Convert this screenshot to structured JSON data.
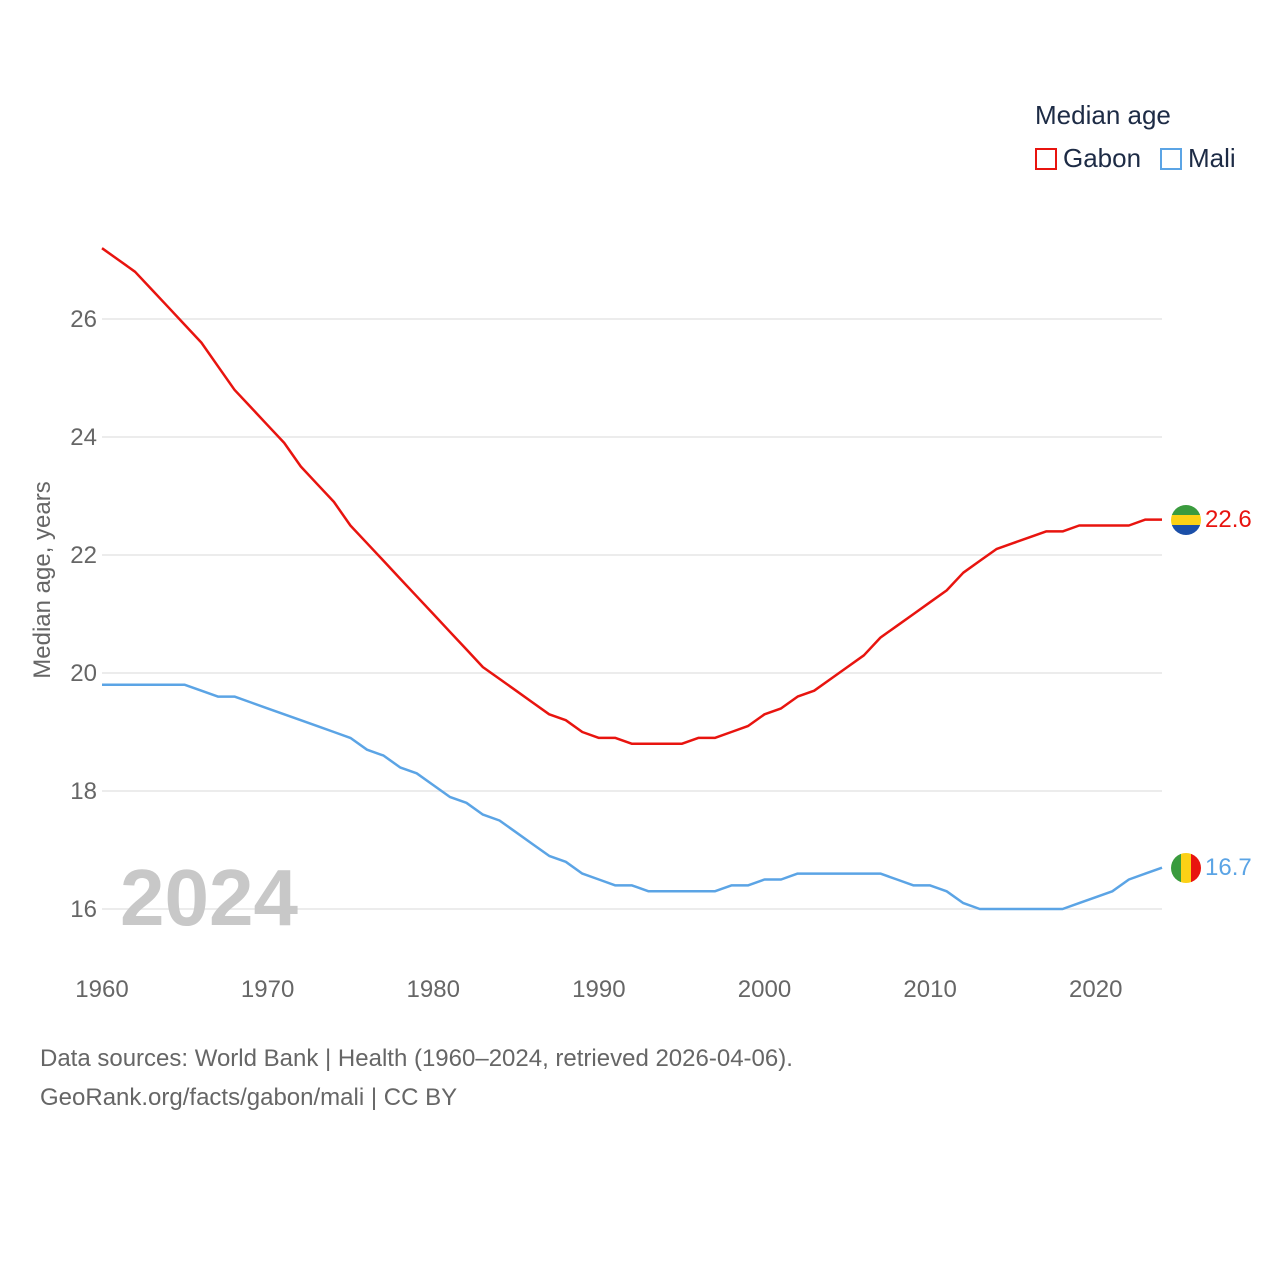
{
  "chart_data": {
    "type": "line",
    "legend_title": "Median age",
    "ylabel": "Median age, years",
    "xlabel": "",
    "xlim": [
      1960,
      2024
    ],
    "ylim": [
      15,
      27.5
    ],
    "x_ticks": [
      1960,
      1970,
      1980,
      1990,
      2000,
      2010,
      2020
    ],
    "y_ticks": [
      16,
      18,
      20,
      22,
      24,
      26
    ],
    "year_display": "2024",
    "x": [
      1960,
      1961,
      1962,
      1963,
      1964,
      1965,
      1966,
      1967,
      1968,
      1969,
      1970,
      1971,
      1972,
      1973,
      1974,
      1975,
      1976,
      1977,
      1978,
      1979,
      1980,
      1981,
      1982,
      1983,
      1984,
      1985,
      1986,
      1987,
      1988,
      1989,
      1990,
      1991,
      1992,
      1993,
      1994,
      1995,
      1996,
      1997,
      1998,
      1999,
      2000,
      2001,
      2002,
      2003,
      2004,
      2005,
      2006,
      2007,
      2008,
      2009,
      2010,
      2011,
      2012,
      2013,
      2014,
      2015,
      2016,
      2017,
      2018,
      2019,
      2020,
      2021,
      2022,
      2023,
      2024
    ],
    "series": [
      {
        "name": "Gabon",
        "color": "#e8140f",
        "end_label": "22.6",
        "flag": "gabon-flag",
        "values": [
          27.2,
          27.0,
          26.8,
          26.5,
          26.2,
          25.9,
          25.6,
          25.2,
          24.8,
          24.5,
          24.2,
          23.9,
          23.5,
          23.2,
          22.9,
          22.5,
          22.2,
          21.9,
          21.6,
          21.3,
          21.0,
          20.7,
          20.4,
          20.1,
          19.9,
          19.7,
          19.5,
          19.3,
          19.2,
          19.0,
          18.9,
          18.9,
          18.8,
          18.8,
          18.8,
          18.8,
          18.9,
          18.9,
          19.0,
          19.1,
          19.3,
          19.4,
          19.6,
          19.7,
          19.9,
          20.1,
          20.3,
          20.6,
          20.8,
          21.0,
          21.2,
          21.4,
          21.7,
          21.9,
          22.1,
          22.2,
          22.3,
          22.4,
          22.4,
          22.5,
          22.5,
          22.5,
          22.5,
          22.6,
          22.6
        ]
      },
      {
        "name": "Mali",
        "color": "#5ba4e5",
        "end_label": "16.7",
        "flag": "mali-flag",
        "values": [
          19.8,
          19.8,
          19.8,
          19.8,
          19.8,
          19.8,
          19.7,
          19.6,
          19.6,
          19.5,
          19.4,
          19.3,
          19.2,
          19.1,
          19.0,
          18.9,
          18.7,
          18.6,
          18.4,
          18.3,
          18.1,
          17.9,
          17.8,
          17.6,
          17.5,
          17.3,
          17.1,
          16.9,
          16.8,
          16.6,
          16.5,
          16.4,
          16.4,
          16.3,
          16.3,
          16.3,
          16.3,
          16.3,
          16.4,
          16.4,
          16.5,
          16.5,
          16.6,
          16.6,
          16.6,
          16.6,
          16.6,
          16.6,
          16.5,
          16.4,
          16.4,
          16.3,
          16.1,
          16.0,
          16.0,
          16.0,
          16.0,
          16.0,
          16.0,
          16.1,
          16.2,
          16.3,
          16.5,
          16.6,
          16.7
        ]
      }
    ]
  },
  "footer": {
    "line1": "Data sources: World Bank | Health (1960–2024, retrieved 2026-04-06).",
    "line2": "GeoRank.org/facts/gabon/mali | CC BY"
  }
}
